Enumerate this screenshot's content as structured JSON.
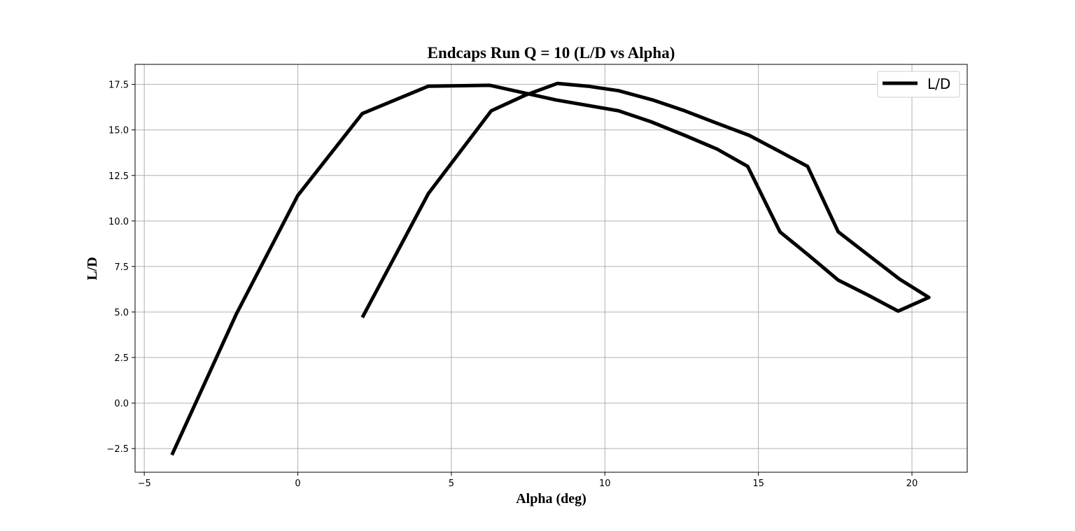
{
  "chart_data": {
    "type": "line",
    "title": "Endcaps Run Q = 10 (L/D vs Alpha)",
    "xlabel": "Alpha (deg)",
    "ylabel": "L/D",
    "xlim": [
      -5.3,
      21.8
    ],
    "ylim": [
      -3.8,
      18.6
    ],
    "xticks": [
      -5,
      0,
      5,
      10,
      15,
      20
    ],
    "yticks": [
      -2.5,
      0.0,
      2.5,
      5.0,
      7.5,
      10.0,
      12.5,
      15.0,
      17.5
    ],
    "xtick_labels": [
      "−5",
      "0",
      "5",
      "10",
      "15",
      "20"
    ],
    "ytick_labels": [
      "−2.5",
      "0.0",
      "2.5",
      "5.0",
      "7.5",
      "10.0",
      "12.5",
      "15.0",
      "17.5"
    ],
    "grid": true,
    "legend_position": "top-right",
    "line_color": "#000000",
    "series": [
      {
        "name": "L/D",
        "x": [
          -4.1,
          -2.0,
          0.0,
          2.1,
          4.25,
          6.25,
          8.4,
          10.45,
          11.5,
          12.6,
          13.65,
          14.65,
          15.7,
          16.65,
          17.6,
          18.6,
          19.55,
          20.55,
          19.6,
          18.6,
          17.6,
          16.6,
          15.65,
          14.7,
          13.6,
          12.6,
          11.55,
          10.45,
          9.45,
          8.45,
          7.4,
          6.3,
          4.25,
          2.1
        ],
        "y": [
          -2.85,
          4.9,
          11.4,
          15.9,
          17.4,
          17.45,
          16.65,
          16.05,
          15.45,
          14.7,
          13.95,
          13.0,
          9.4,
          8.1,
          6.75,
          5.9,
          5.05,
          5.8,
          6.8,
          8.1,
          9.4,
          13.0,
          13.85,
          14.7,
          15.4,
          16.05,
          16.65,
          17.15,
          17.4,
          17.55,
          16.9,
          16.05,
          11.5,
          4.7
        ]
      }
    ]
  }
}
